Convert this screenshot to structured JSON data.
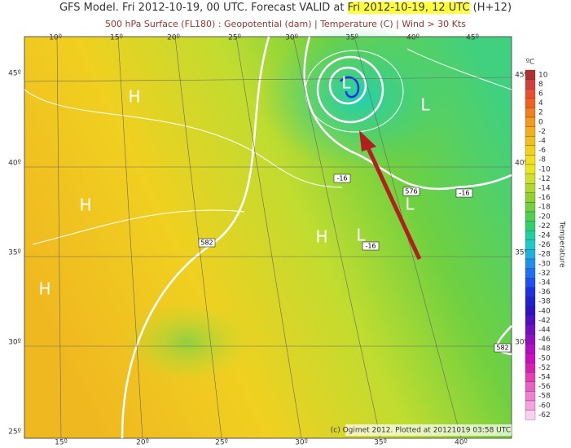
{
  "header": {
    "title_pre": "GFS Model. Fri 2012-10-19, 00 UTC. Forecast VALID at ",
    "title_valid": "Fri 2012-10-19, 12 UTC",
    "title_post": " (H+12)",
    "subtitle": "500 hPa Surface (FL180) : Geopotential (dam) | Temperature (C) | Wind > 30 Kts"
  },
  "map": {
    "lon_top": [
      "10º",
      "15º",
      "20º",
      "25º",
      "30º",
      "35º",
      "40º",
      "45º"
    ],
    "lon_bottom": [
      "15º",
      "20º",
      "25º",
      "30º",
      "35º",
      "40º"
    ],
    "lat_left": [
      "45º",
      "40º",
      "35º",
      "30º",
      "25º"
    ],
    "lat_right": [
      "45º",
      "40º",
      "35º",
      "30º"
    ],
    "pressure_centers": [
      "H",
      "H",
      "H",
      "H",
      "L",
      "L",
      "L",
      "L"
    ],
    "contour_labels": [
      "582",
      "576",
      "-16",
      "-16",
      "-16",
      "582"
    ],
    "credit": "(c) Ogimet 2012. Plotted at 20121019 03:58 UTC"
  },
  "colorbar": {
    "unit": "ºC",
    "title": "Temperature",
    "ticks": [
      10,
      8,
      6,
      4,
      2,
      0,
      -2,
      -4,
      -6,
      -8,
      -10,
      -12,
      -14,
      -16,
      -18,
      -20,
      -22,
      -24,
      -26,
      -28,
      -30,
      -32,
      -34,
      -36,
      -38,
      -40,
      -42,
      -44,
      -46,
      -48,
      -50,
      -52,
      -54,
      -56,
      -58,
      -60,
      -62
    ],
    "colors": [
      "#b03030",
      "#d04040",
      "#e85030",
      "#f06020",
      "#f08020",
      "#f09a20",
      "#f0b020",
      "#f0c020",
      "#f0d020",
      "#f0e020",
      "#e8e820",
      "#d0e030",
      "#b0d830",
      "#90d030",
      "#70d040",
      "#50d050",
      "#30d070",
      "#20d0a0",
      "#20c8c8",
      "#20b0e0",
      "#2090e8",
      "#2070f0",
      "#2050f0",
      "#2030e0",
      "#2020d0",
      "#3010c0",
      "#5010c0",
      "#7010c0",
      "#9010c0",
      "#b010c0",
      "#c810c0",
      "#d820b0",
      "#e040b0",
      "#e860c0",
      "#f080d0",
      "#f8a0e0",
      "#fcd0f0"
    ]
  }
}
